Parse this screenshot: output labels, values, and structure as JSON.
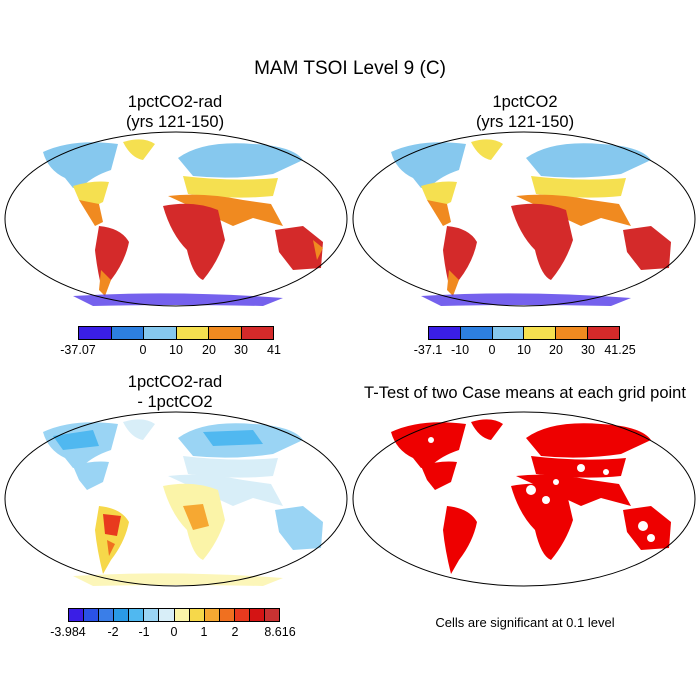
{
  "main_title": "MAM TSOI Level 9 (C)",
  "panels": [
    {
      "title1": "1pctCO2-rad",
      "title2": "(yrs 121-150)"
    },
    {
      "title1": "1pctCO2",
      "title2": "(yrs 121-150)"
    },
    {
      "title1": "1pctCO2-rad",
      "title2": "- 1pctCO2"
    },
    {
      "title1": "T-Test of two Case means at each grid point",
      "title2": ""
    }
  ],
  "colorbars": [
    {
      "colors": [
        "#3a1ee6",
        "#2d7fe0",
        "#86c8ee",
        "#f5e050",
        "#f08a20",
        "#d42a2a"
      ],
      "ticks": [
        "-37.07",
        "0",
        "10",
        "20",
        "30",
        "41"
      ]
    },
    {
      "colors": [
        "#3a1ee6",
        "#2d7fe0",
        "#86c8ee",
        "#f5e050",
        "#f08a20",
        "#d42a2a"
      ],
      "ticks": [
        "-37.1",
        "-10",
        "0",
        "10",
        "20",
        "30",
        "41.25"
      ]
    },
    {
      "colors": [
        "#3a1ee6",
        "#2a52e6",
        "#3a7ee8",
        "#2a9ae6",
        "#50b8f0",
        "#9ad4f4",
        "#d8eef8",
        "#fbf4a8",
        "#f6d84a",
        "#f6a832",
        "#f07020",
        "#e83a1e",
        "#d41414",
        "#c83232"
      ],
      "ticks": [
        "-3.984",
        "-2",
        "-1",
        "0",
        "1",
        "2",
        "8.616"
      ]
    }
  ],
  "significance_note": "Cells are significant at 0.1 level",
  "colors": {
    "land_cold": "#86c8ee",
    "land_hot": "#d42a2a",
    "significant": "#ee0000"
  }
}
